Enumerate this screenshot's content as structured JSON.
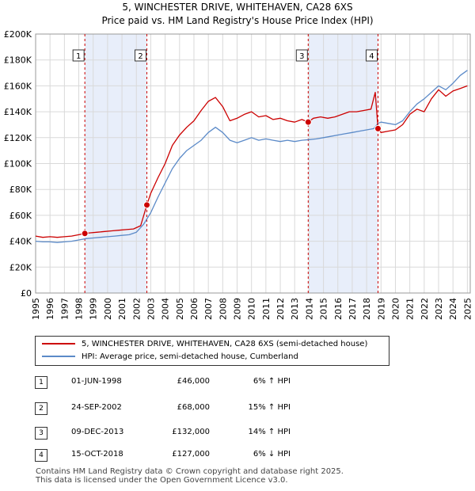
{
  "title_line1": "5, WINCHESTER DRIVE, WHITEHAVEN, CA28 6XS",
  "title_line2": "Price paid vs. HM Land Registry's House Price Index (HPI)",
  "chart_data": {
    "type": "line",
    "title": "5, WINCHESTER DRIVE, WHITEHAVEN, CA28 6XS — Price paid vs. HM Land Registry's House Price Index (HPI)",
    "xlabel": "",
    "ylabel": "",
    "xlim": [
      1995,
      2025.2
    ],
    "ylim": [
      0,
      200000
    ],
    "x_ticks": [
      "1995",
      "1996",
      "1997",
      "1998",
      "1999",
      "2000",
      "2001",
      "2002",
      "2003",
      "2004",
      "2005",
      "2006",
      "2007",
      "2008",
      "2009",
      "2010",
      "2011",
      "2012",
      "2013",
      "2014",
      "2015",
      "2016",
      "2017",
      "2018",
      "2019",
      "2020",
      "2021",
      "2022",
      "2023",
      "2024",
      "2025"
    ],
    "y_ticks": [
      {
        "value": 0,
        "label": "£0"
      },
      {
        "value": 20000,
        "label": "£20K"
      },
      {
        "value": 40000,
        "label": "£40K"
      },
      {
        "value": 60000,
        "label": "£60K"
      },
      {
        "value": 80000,
        "label": "£80K"
      },
      {
        "value": 100000,
        "label": "£100K"
      },
      {
        "value": 120000,
        "label": "£120K"
      },
      {
        "value": 140000,
        "label": "£140K"
      },
      {
        "value": 160000,
        "label": "£160K"
      },
      {
        "value": 180000,
        "label": "£180K"
      },
      {
        "value": 200000,
        "label": "£200K"
      }
    ],
    "grid": true,
    "shaded_periods": [
      [
        1998.42,
        2002.73
      ],
      [
        2013.94,
        2018.79
      ]
    ],
    "series": [
      {
        "name": "5, WINCHESTER DRIVE, WHITEHAVEN, CA28 6XS (semi-detached house)",
        "color": "#cc0000",
        "x": [
          1995,
          1995.5,
          1996,
          1996.5,
          1997,
          1997.5,
          1998,
          1998.42,
          1998.8,
          1999.3,
          1999.8,
          2000.3,
          2000.8,
          2001.3,
          2001.8,
          2002.3,
          2002.73,
          2003.0,
          2003.5,
          2004.0,
          2004.5,
          2005.0,
          2005.5,
          2006.0,
          2006.5,
          2007.0,
          2007.5,
          2008.0,
          2008.5,
          2009.0,
          2009.5,
          2010.0,
          2010.5,
          2011.0,
          2011.5,
          2012.0,
          2012.5,
          2013.0,
          2013.5,
          2013.94,
          2014.3,
          2014.8,
          2015.3,
          2015.8,
          2016.3,
          2016.8,
          2017.3,
          2017.8,
          2018.3,
          2018.6,
          2018.79,
          2019.0,
          2019.5,
          2020.0,
          2020.5,
          2021.0,
          2021.5,
          2022.0,
          2022.5,
          2023.0,
          2023.5,
          2024.0,
          2024.5,
          2025.0
        ],
        "values": [
          44000,
          43000,
          43500,
          43000,
          43500,
          44000,
          45000,
          46000,
          46500,
          47000,
          47500,
          48000,
          48500,
          49000,
          49500,
          52000,
          68000,
          77000,
          89000,
          100000,
          114000,
          122000,
          128000,
          133000,
          141000,
          148000,
          151000,
          144000,
          133000,
          135000,
          138000,
          140000,
          136000,
          137000,
          134000,
          135000,
          133000,
          132000,
          134000,
          132000,
          135000,
          136000,
          135000,
          136000,
          138000,
          140000,
          140000,
          141000,
          142000,
          155000,
          127000,
          124000,
          125000,
          126000,
          130000,
          138000,
          142000,
          140000,
          150000,
          157000,
          152000,
          156000,
          158000,
          160000
        ],
        "markers": [
          {
            "label": "1",
            "x": 1998.42,
            "y": 46000
          },
          {
            "label": "2",
            "x": 2002.73,
            "y": 68000
          },
          {
            "label": "3",
            "x": 2013.94,
            "y": 132000
          },
          {
            "label": "4",
            "x": 2018.79,
            "y": 127000
          }
        ]
      },
      {
        "name": "HPI: Average price, semi-detached house, Cumberland",
        "color": "#5b8ac8",
        "x": [
          1995,
          1995.5,
          1996,
          1996.5,
          1997,
          1997.5,
          1998,
          1998.5,
          1999,
          1999.5,
          2000,
          2000.5,
          2001,
          2001.5,
          2002,
          2002.5,
          2003,
          2003.5,
          2004,
          2004.5,
          2005,
          2005.5,
          2006,
          2006.5,
          2007,
          2007.5,
          2008,
          2008.5,
          2009,
          2009.5,
          2010,
          2010.5,
          2011,
          2011.5,
          2012,
          2012.5,
          2013,
          2013.5,
          2014,
          2014.5,
          2015,
          2015.5,
          2016,
          2016.5,
          2017,
          2017.5,
          2018,
          2018.5,
          2018.79,
          2019,
          2019.5,
          2020,
          2020.5,
          2021,
          2021.5,
          2022,
          2022.5,
          2023,
          2023.5,
          2024,
          2024.5,
          2025
        ],
        "values": [
          40000,
          39500,
          39500,
          39000,
          39500,
          40000,
          41000,
          42000,
          42500,
          43000,
          43500,
          44000,
          44500,
          45000,
          47000,
          53000,
          62000,
          74000,
          85000,
          96000,
          104000,
          110000,
          114000,
          118000,
          124000,
          128000,
          124000,
          118000,
          116000,
          118000,
          120000,
          118000,
          119000,
          118000,
          117000,
          118000,
          117000,
          118000,
          118500,
          119000,
          120000,
          121000,
          122000,
          123000,
          124000,
          125000,
          126000,
          127000,
          131000,
          132000,
          131000,
          130000,
          133000,
          140000,
          146000,
          150000,
          155000,
          160000,
          157000,
          162000,
          168000,
          172000
        ]
      }
    ],
    "legend": "top-left-below-chart"
  },
  "legend": {
    "entries": [
      {
        "label": "5, WINCHESTER DRIVE, WHITEHAVEN, CA28 6XS (semi-detached house)",
        "color": "#cc0000"
      },
      {
        "label": "HPI: Average price, semi-detached house, Cumberland",
        "color": "#5b8ac8"
      }
    ]
  },
  "transactions": [
    {
      "num": "1",
      "date": "01-JUN-1998",
      "price": "£46,000",
      "pct": "6% ↑ HPI"
    },
    {
      "num": "2",
      "date": "24-SEP-2002",
      "price": "£68,000",
      "pct": "15% ↑ HPI"
    },
    {
      "num": "3",
      "date": "09-DEC-2013",
      "price": "£132,000",
      "pct": "14% ↑ HPI"
    },
    {
      "num": "4",
      "date": "15-OCT-2018",
      "price": "£127,000",
      "pct": "6% ↓ HPI"
    }
  ],
  "footer": {
    "line1": "Contains HM Land Registry data © Crown copyright and database right 2025.",
    "line2": "This data is licensed under the Open Government Licence v3.0."
  }
}
